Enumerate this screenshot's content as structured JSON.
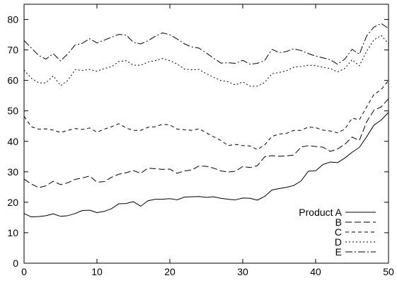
{
  "chart_data": {
    "type": "line",
    "title": "",
    "xlabel": "",
    "ylabel": "",
    "xlim": [
      0,
      50
    ],
    "ylim": [
      0,
      85
    ],
    "xticks": [
      0,
      10,
      20,
      30,
      40,
      50
    ],
    "yticks": [
      0,
      10,
      20,
      30,
      40,
      50,
      60,
      70,
      80
    ],
    "grid": false,
    "legend_position": "bottom-right",
    "x": [
      0,
      1,
      2,
      3,
      4,
      5,
      6,
      7,
      8,
      9,
      10,
      11,
      12,
      13,
      14,
      15,
      16,
      17,
      18,
      19,
      20,
      21,
      22,
      23,
      24,
      25,
      26,
      27,
      28,
      29,
      30,
      31,
      32,
      33,
      34,
      35,
      36,
      37,
      38,
      39,
      40,
      41,
      42,
      43,
      44,
      45,
      46,
      47,
      48,
      49,
      50
    ],
    "series": [
      {
        "name": "Product A",
        "dash": "",
        "values": [
          16.3,
          15.2,
          15.3,
          15.6,
          16.2,
          15.4,
          15.6,
          16.3,
          17.3,
          17.4,
          16.6,
          17.0,
          17.9,
          19.5,
          19.6,
          20.2,
          18.7,
          20.5,
          21.0,
          21.0,
          21.2,
          20.8,
          21.7,
          21.8,
          21.9,
          21.6,
          21.8,
          21.3,
          21.0,
          20.8,
          21.4,
          21.3,
          20.7,
          21.9,
          24.0,
          24.5,
          24.9,
          25.5,
          27.0,
          30.2,
          30.3,
          32.4,
          33.2,
          33.0,
          34.5,
          36.4,
          38.0,
          41.5,
          45.3,
          47.0,
          49.5
        ]
      },
      {
        "name": "B",
        "dash": "9,4",
        "values": [
          27.6,
          26.0,
          24.8,
          25.4,
          26.9,
          25.8,
          26.4,
          27.5,
          28.0,
          28.6,
          26.6,
          26.8,
          28.2,
          29.2,
          29.7,
          30.4,
          29.5,
          31.2,
          31.0,
          30.8,
          30.9,
          29.5,
          30.3,
          30.6,
          31.9,
          31.8,
          31.2,
          30.3,
          29.9,
          30.2,
          31.7,
          31.4,
          32.0,
          34.9,
          35.3,
          35.1,
          35.2,
          35.5,
          38.1,
          38.6,
          38.3,
          38.1,
          36.7,
          37.5,
          39.0,
          41.4,
          40.3,
          46.4,
          50.2,
          51.3,
          54.0
        ]
      },
      {
        "name": "C",
        "dash": "5,4",
        "values": [
          48.2,
          44.8,
          44.0,
          44.1,
          43.7,
          42.9,
          43.6,
          44.2,
          43.9,
          44.4,
          43.0,
          44.0,
          44.8,
          45.8,
          44.4,
          43.6,
          43.6,
          44.6,
          44.8,
          45.6,
          45.4,
          44.0,
          43.8,
          43.6,
          44.1,
          42.8,
          41.5,
          40.3,
          38.6,
          39.0,
          38.6,
          38.5,
          37.3,
          38.8,
          41.6,
          42.4,
          42.6,
          43.6,
          43.6,
          44.7,
          44.5,
          43.7,
          43.4,
          42.8,
          44.0,
          47.6,
          47.1,
          51.3,
          55.4,
          57.0,
          60.0
        ]
      },
      {
        "name": "D",
        "dash": "2,3",
        "values": [
          63.4,
          60.7,
          59.2,
          59.2,
          61.5,
          58.3,
          60.0,
          63.5,
          63.3,
          63.6,
          63.0,
          63.9,
          64.5,
          66.2,
          66.5,
          65.0,
          65.0,
          66.0,
          66.5,
          67.2,
          66.5,
          65.4,
          63.7,
          63.5,
          63.6,
          62.2,
          61.0,
          60.0,
          59.5,
          58.5,
          59.5,
          58.1,
          58.1,
          59.3,
          62.2,
          62.6,
          63.2,
          64.3,
          64.6,
          65.0,
          64.9,
          64.3,
          63.9,
          62.8,
          63.9,
          66.8,
          64.8,
          69.6,
          73.3,
          74.8,
          72.0
        ]
      },
      {
        "name": "E",
        "dash": "10,3,2,3",
        "values": [
          73.1,
          70.6,
          68.2,
          67.0,
          68.8,
          66.4,
          68.7,
          71.6,
          72.2,
          73.7,
          72.3,
          73.2,
          74.2,
          75.1,
          74.9,
          72.5,
          72.0,
          73.0,
          74.5,
          75.6,
          75.0,
          73.6,
          72.0,
          71.0,
          70.6,
          69.0,
          67.3,
          65.7,
          65.8,
          65.6,
          66.6,
          65.3,
          65.6,
          66.5,
          70.2,
          69.1,
          69.5,
          70.4,
          69.8,
          68.8,
          68.0,
          67.4,
          66.8,
          65.3,
          67.0,
          70.2,
          68.6,
          74.6,
          77.5,
          78.7,
          77.0
        ]
      }
    ]
  }
}
